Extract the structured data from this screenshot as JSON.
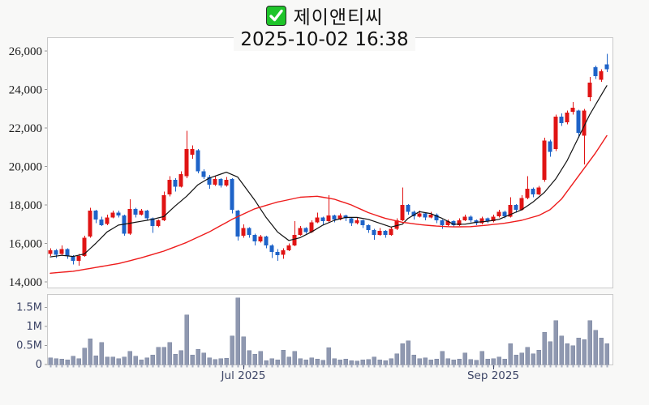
{
  "header": {
    "title": "제이앤티씨",
    "datetime": "2025-10-02 16:38"
  },
  "colors": {
    "page_bg": "#f8f8f7",
    "panel_bg": "#ffffff",
    "panel_border": "#c9c9c9",
    "candle_up": "#e01414",
    "candle_down": "#1e63c8",
    "ma_short": "#111111",
    "ma_long": "#ee1c1c",
    "volume_bar": "#8f98b0",
    "volume_bar_edge": "#7e87a2",
    "price_label": "#1a1a1a",
    "slate_label": "#3d4566",
    "tick": "#a6aec2",
    "checkbox_green": "#1ec42a"
  },
  "chart_data": {
    "type": "candlestick",
    "title": "제이앤티씨",
    "subtitle": "2025-10-02 16:38",
    "legend": "none",
    "grid": "off",
    "price_axis": {
      "min": 14000,
      "max": 26000,
      "ticks": [
        {
          "label": "26,000",
          "value": 26000
        },
        {
          "label": "24,000",
          "value": 24000
        },
        {
          "label": "22,000",
          "value": 22000
        },
        {
          "label": "20,000",
          "value": 20000
        },
        {
          "label": "18,000",
          "value": 18000
        },
        {
          "label": "16,000",
          "value": 16000
        },
        {
          "label": "14,000",
          "value": 14000
        }
      ]
    },
    "volume_axis": {
      "unit": "millions",
      "ticks": [
        {
          "label": "1.5M",
          "value": 1.5
        },
        {
          "label": "1M",
          "value": 1.0
        },
        {
          "label": "0.5M",
          "value": 0.5
        },
        {
          "label": "0",
          "value": 0
        }
      ]
    },
    "x_axis": {
      "month_ticks": [
        {
          "label": "Jul 2025",
          "index": 34
        },
        {
          "label": "Sep 2025",
          "index": 78
        }
      ]
    },
    "candles_format": [
      "open",
      "high",
      "low",
      "close"
    ],
    "candles": [
      [
        15450,
        15750,
        15350,
        15650
      ],
      [
        15650,
        15700,
        15250,
        15400
      ],
      [
        15450,
        15900,
        15400,
        15700
      ],
      [
        15700,
        15750,
        15200,
        15350
      ],
      [
        15350,
        15400,
        14900,
        15100
      ],
      [
        15100,
        15450,
        14850,
        15350
      ],
      [
        15350,
        16400,
        15300,
        16300
      ],
      [
        16350,
        17850,
        16300,
        17700
      ],
      [
        17700,
        17750,
        17050,
        17250
      ],
      [
        17250,
        17400,
        16900,
        16950
      ],
      [
        17000,
        17500,
        16950,
        17350
      ],
      [
        17350,
        17700,
        17300,
        17600
      ],
      [
        17600,
        17700,
        17350,
        17450
      ],
      [
        17450,
        17500,
        16400,
        16500
      ],
      [
        16500,
        18300,
        16450,
        17800
      ],
      [
        17800,
        17850,
        17350,
        17500
      ],
      [
        17500,
        17800,
        17450,
        17700
      ],
      [
        17700,
        17750,
        17200,
        17300
      ],
      [
        17300,
        17350,
        16550,
        16900
      ],
      [
        16900,
        17250,
        16850,
        17200
      ],
      [
        17200,
        18700,
        17150,
        18500
      ],
      [
        18550,
        19500,
        18450,
        19300
      ],
      [
        19300,
        19400,
        18700,
        18950
      ],
      [
        18950,
        19750,
        18900,
        19600
      ],
      [
        19500,
        21850,
        19400,
        20900
      ],
      [
        20600,
        21100,
        20400,
        20900
      ],
      [
        20850,
        20900,
        19650,
        19750
      ],
      [
        19750,
        19850,
        19350,
        19450
      ],
      [
        19450,
        19550,
        18850,
        19050
      ],
      [
        19050,
        19500,
        19000,
        19350
      ],
      [
        19350,
        19400,
        18900,
        19000
      ],
      [
        19000,
        19450,
        18950,
        19300
      ],
      [
        19350,
        19400,
        17550,
        17750
      ],
      [
        17700,
        17750,
        16150,
        16350
      ],
      [
        16400,
        17000,
        16300,
        16800
      ],
      [
        16800,
        16850,
        16300,
        16450
      ],
      [
        16450,
        16500,
        15900,
        16100
      ],
      [
        16100,
        16450,
        16050,
        16350
      ],
      [
        16350,
        16400,
        15750,
        15900
      ],
      [
        15900,
        15950,
        15250,
        15550
      ],
      [
        15550,
        15700,
        15100,
        15400
      ],
      [
        15400,
        15750,
        15200,
        15650
      ],
      [
        15650,
        16000,
        15600,
        15900
      ],
      [
        15900,
        17150,
        15850,
        16450
      ],
      [
        16450,
        16900,
        16400,
        16800
      ],
      [
        16800,
        16850,
        16500,
        16600
      ],
      [
        16600,
        17200,
        16550,
        17100
      ],
      [
        17100,
        17600,
        17050,
        17350
      ],
      [
        17350,
        17400,
        17000,
        17150
      ],
      [
        17150,
        18500,
        17100,
        17450
      ],
      [
        17450,
        17500,
        17100,
        17250
      ],
      [
        17250,
        17550,
        17200,
        17450
      ],
      [
        17450,
        17500,
        17150,
        17300
      ],
      [
        17300,
        17350,
        16900,
        17050
      ],
      [
        17050,
        17350,
        17000,
        17200
      ],
      [
        17200,
        17250,
        16800,
        16950
      ],
      [
        16950,
        17000,
        16550,
        16700
      ],
      [
        16700,
        16750,
        16200,
        16450
      ],
      [
        16450,
        16800,
        16400,
        16650
      ],
      [
        16650,
        16700,
        16300,
        16450
      ],
      [
        16450,
        16850,
        16400,
        16750
      ],
      [
        16750,
        17300,
        16700,
        17200
      ],
      [
        17200,
        18900,
        17150,
        18000
      ],
      [
        18000,
        18050,
        17500,
        17650
      ],
      [
        17650,
        17700,
        17250,
        17400
      ],
      [
        17400,
        17700,
        17350,
        17550
      ],
      [
        17550,
        17600,
        17200,
        17350
      ],
      [
        17350,
        17650,
        17300,
        17500
      ],
      [
        17500,
        17550,
        17050,
        17200
      ],
      [
        17200,
        17250,
        16750,
        16950
      ],
      [
        16950,
        17250,
        16900,
        17150
      ],
      [
        17150,
        17200,
        16850,
        16950
      ],
      [
        16950,
        17300,
        16900,
        17200
      ],
      [
        17200,
        17500,
        17150,
        17400
      ],
      [
        17400,
        17450,
        17100,
        17200
      ],
      [
        17200,
        17250,
        16950,
        17050
      ],
      [
        17050,
        17400,
        17000,
        17300
      ],
      [
        17300,
        17350,
        17050,
        17150
      ],
      [
        17150,
        17500,
        17100,
        17400
      ],
      [
        17400,
        17750,
        17350,
        17650
      ],
      [
        17650,
        17700,
        17300,
        17400
      ],
      [
        17400,
        18400,
        17350,
        18000
      ],
      [
        18000,
        18050,
        17600,
        17750
      ],
      [
        17750,
        18500,
        17700,
        18350
      ],
      [
        18350,
        19500,
        18300,
        18850
      ],
      [
        18850,
        18900,
        18400,
        18550
      ],
      [
        18550,
        19000,
        18500,
        18900
      ],
      [
        19300,
        21500,
        19200,
        21350
      ],
      [
        21300,
        21400,
        20500,
        20750
      ],
      [
        20900,
        22700,
        20800,
        22600
      ],
      [
        22600,
        22750,
        22100,
        22250
      ],
      [
        22300,
        22900,
        22200,
        22800
      ],
      [
        22850,
        23350,
        22700,
        23050
      ],
      [
        22900,
        22950,
        21500,
        21750
      ],
      [
        21600,
        23000,
        20100,
        22900
      ],
      [
        23600,
        24650,
        23400,
        24350
      ],
      [
        25150,
        25250,
        24550,
        24700
      ],
      [
        24500,
        25050,
        24400,
        24950
      ],
      [
        25300,
        25850,
        24900,
        25050
      ]
    ],
    "volumes_millions": [
      0.18,
      0.15,
      0.14,
      0.12,
      0.22,
      0.16,
      0.43,
      0.68,
      0.23,
      0.58,
      0.2,
      0.2,
      0.16,
      0.2,
      0.35,
      0.22,
      0.12,
      0.18,
      0.25,
      0.45,
      0.45,
      0.58,
      0.27,
      0.37,
      1.3,
      0.25,
      0.4,
      0.3,
      0.18,
      0.13,
      0.15,
      0.17,
      0.75,
      1.75,
      0.73,
      0.37,
      0.27,
      0.35,
      0.1,
      0.15,
      0.12,
      0.38,
      0.2,
      0.35,
      0.15,
      0.12,
      0.18,
      0.14,
      0.11,
      0.44,
      0.15,
      0.12,
      0.14,
      0.1,
      0.09,
      0.12,
      0.13,
      0.2,
      0.12,
      0.1,
      0.15,
      0.28,
      0.55,
      0.62,
      0.25,
      0.15,
      0.18,
      0.12,
      0.14,
      0.35,
      0.16,
      0.12,
      0.14,
      0.3,
      0.13,
      0.11,
      0.35,
      0.14,
      0.16,
      0.2,
      0.14,
      0.55,
      0.25,
      0.3,
      0.45,
      0.28,
      0.38,
      0.85,
      0.6,
      1.15,
      0.75,
      0.55,
      0.5,
      0.7,
      0.65,
      1.15,
      0.9,
      0.7,
      0.55
    ],
    "ma_short_points": [
      [
        0,
        15300
      ],
      [
        2,
        15380
      ],
      [
        4,
        15320
      ],
      [
        6,
        15450
      ],
      [
        8,
        16000
      ],
      [
        10,
        16600
      ],
      [
        12,
        16950
      ],
      [
        14,
        17050
      ],
      [
        16,
        17150
      ],
      [
        18,
        17250
      ],
      [
        20,
        17400
      ],
      [
        22,
        17950
      ],
      [
        24,
        18450
      ],
      [
        26,
        19050
      ],
      [
        28,
        19400
      ],
      [
        30,
        19600
      ],
      [
        31,
        19700
      ],
      [
        33,
        19450
      ],
      [
        34,
        19050
      ],
      [
        36,
        18250
      ],
      [
        38,
        17350
      ],
      [
        40,
        16600
      ],
      [
        42,
        16150
      ],
      [
        44,
        16300
      ],
      [
        46,
        16600
      ],
      [
        48,
        16950
      ],
      [
        50,
        17200
      ],
      [
        52,
        17350
      ],
      [
        54,
        17350
      ],
      [
        56,
        17250
      ],
      [
        58,
        17050
      ],
      [
        60,
        16850
      ],
      [
        62,
        17000
      ],
      [
        63,
        17300
      ],
      [
        65,
        17650
      ],
      [
        67,
        17550
      ],
      [
        69,
        17300
      ],
      [
        71,
        17000
      ],
      [
        73,
        17000
      ],
      [
        75,
        17100
      ],
      [
        77,
        17150
      ],
      [
        79,
        17250
      ],
      [
        81,
        17500
      ],
      [
        83,
        17750
      ],
      [
        85,
        18150
      ],
      [
        87,
        18650
      ],
      [
        89,
        19350
      ],
      [
        91,
        20300
      ],
      [
        93,
        21500
      ],
      [
        95,
        22700
      ],
      [
        97,
        23700
      ],
      [
        98,
        24200
      ]
    ],
    "ma_long_points": [
      [
        0,
        14450
      ],
      [
        4,
        14550
      ],
      [
        8,
        14750
      ],
      [
        12,
        14950
      ],
      [
        16,
        15250
      ],
      [
        20,
        15600
      ],
      [
        24,
        16050
      ],
      [
        28,
        16600
      ],
      [
        32,
        17250
      ],
      [
        36,
        17800
      ],
      [
        40,
        18150
      ],
      [
        44,
        18400
      ],
      [
        47,
        18450
      ],
      [
        50,
        18300
      ],
      [
        53,
        18000
      ],
      [
        56,
        17600
      ],
      [
        59,
        17300
      ],
      [
        62,
        17100
      ],
      [
        65,
        16980
      ],
      [
        68,
        16900
      ],
      [
        71,
        16860
      ],
      [
        74,
        16870
      ],
      [
        77,
        16950
      ],
      [
        80,
        17050
      ],
      [
        83,
        17200
      ],
      [
        86,
        17450
      ],
      [
        88,
        17750
      ],
      [
        90,
        18300
      ],
      [
        92,
        19100
      ],
      [
        94,
        19900
      ],
      [
        96,
        20700
      ],
      [
        98,
        21600
      ]
    ]
  }
}
